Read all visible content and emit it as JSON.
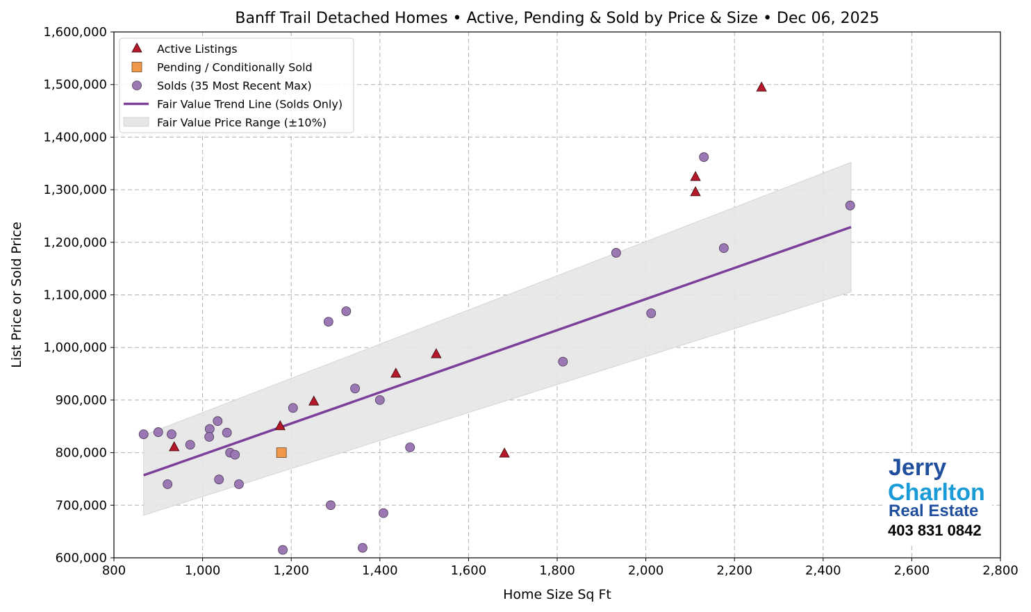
{
  "chart_data": {
    "type": "scatter",
    "title": "Banff Trail Detached Homes • Active, Pending & Sold by Price & Size • Dec 06, 2025",
    "xlabel": "Home Size Sq Ft",
    "ylabel": "List Price or Sold Price",
    "xlim": [
      800,
      2800
    ],
    "ylim": [
      600000,
      1600000
    ],
    "xticks": [
      800,
      1000,
      1200,
      1400,
      1600,
      1800,
      2000,
      2200,
      2400,
      2600,
      2800
    ],
    "yticks": [
      600000,
      700000,
      800000,
      900000,
      1000000,
      1100000,
      1200000,
      1300000,
      1400000,
      1500000,
      1600000
    ],
    "grid": true,
    "legend_position": "top-left",
    "series": [
      {
        "name": "Active Listings",
        "marker": "triangle",
        "color": "#b5172b",
        "points": [
          [
            936,
            810000
          ],
          [
            1175,
            850000
          ],
          [
            1251,
            897000
          ],
          [
            1436,
            950000
          ],
          [
            1527,
            987000
          ],
          [
            1681,
            798000
          ],
          [
            2112,
            1324000
          ],
          [
            2112,
            1295000
          ],
          [
            2261,
            1494000
          ]
        ]
      },
      {
        "name": "Pending / Conditionally Sold",
        "marker": "square",
        "color": "#f0974a",
        "points": [
          [
            1178,
            800000
          ]
        ]
      },
      {
        "name": "Solds (35 Most Recent Max)",
        "marker": "circle",
        "color": "#9b77b4",
        "points": [
          [
            867,
            835000
          ],
          [
            900,
            839000
          ],
          [
            930,
            835000
          ],
          [
            972,
            815000
          ],
          [
            921,
            740000
          ],
          [
            1016,
            845000
          ],
          [
            1015,
            830000
          ],
          [
            1034,
            860000
          ],
          [
            1055,
            838000
          ],
          [
            1062,
            800000
          ],
          [
            1073,
            796000
          ],
          [
            1037,
            749000
          ],
          [
            1082,
            740000
          ],
          [
            1204,
            885000
          ],
          [
            1181,
            615000
          ],
          [
            1284,
            1049000
          ],
          [
            1324,
            1069000
          ],
          [
            1289,
            700000
          ],
          [
            1344,
            922000
          ],
          [
            1400,
            900000
          ],
          [
            1361,
            619000
          ],
          [
            1408,
            685000
          ],
          [
            1468,
            810000
          ],
          [
            1813,
            973000
          ],
          [
            1933,
            1180000
          ],
          [
            2012,
            1065000
          ],
          [
            2131,
            1362000
          ],
          [
            2176,
            1189000
          ],
          [
            2461,
            1270000
          ]
        ]
      },
      {
        "name": "Fair Value Trend Line (Solds Only)",
        "type": "line",
        "color": "#7b3f9a",
        "points": [
          [
            867,
            757000
          ],
          [
            2463,
            1229000
          ]
        ]
      },
      {
        "name": "Fair Value Price Range (±10%)",
        "type": "band",
        "color": "#e6e6e6",
        "points": [
          [
            867,
            681000,
            833000
          ],
          [
            2463,
            1106000,
            1352000
          ]
        ]
      }
    ]
  },
  "logo": {
    "line1": "Jerry",
    "line2": "Charlton",
    "line3": "Real Estate",
    "phone": "403 831 0842"
  }
}
